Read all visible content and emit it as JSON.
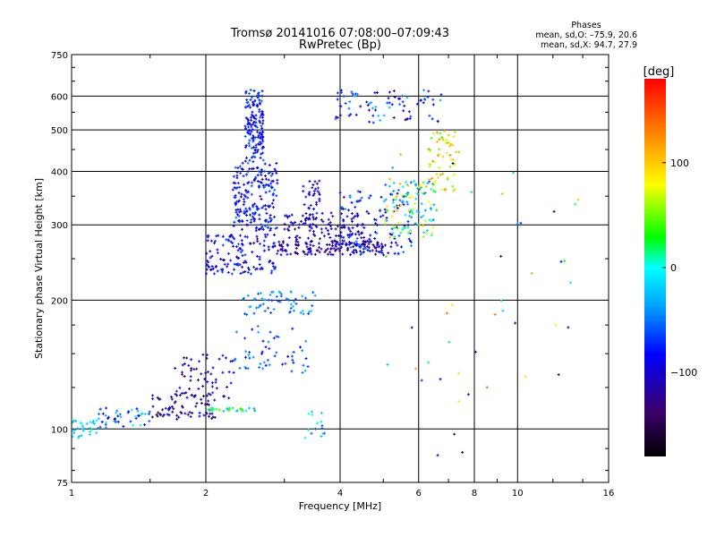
{
  "chart_data": {
    "type": "scatter",
    "title": "Tromsø 20141016 07:08:00–07:09:43",
    "subtitle": "RwPretec (Bp)",
    "xlabel": "Frequency [MHz]",
    "ylabel": "Stationary phase Virtual Height [km]",
    "x_scale": "log",
    "y_scale": "log",
    "xlim": [
      1,
      16
    ],
    "ylim": [
      75,
      750
    ],
    "x_ticks": [
      1,
      2,
      4,
      6,
      8,
      10,
      16
    ],
    "y_ticks": [
      75,
      100,
      200,
      300,
      400,
      500,
      600,
      750
    ],
    "grid": true,
    "stats": {
      "heading": "Phases",
      "line1": "mean, sd,O: –75.9, 20.6",
      "line2": "mean, sd,X:  94.7, 27.9"
    },
    "colorbar": {
      "label": "[deg]",
      "range": [
        -180,
        180
      ],
      "ticks": [
        {
          "value": 100,
          "label": "100"
        },
        {
          "value": 0,
          "label": "0"
        },
        {
          "value": -100,
          "label": "−100"
        }
      ]
    },
    "clusters": [
      {
        "f": [
          1.0,
          1.15
        ],
        "h": [
          95,
          105
        ],
        "n": 30,
        "phase": [
          -40,
          20
        ]
      },
      {
        "f": [
          1.15,
          1.5
        ],
        "h": [
          100,
          112
        ],
        "n": 45,
        "phase": [
          -110,
          10
        ]
      },
      {
        "f": [
          1.5,
          2.1
        ],
        "h": [
          105,
          120
        ],
        "n": 70,
        "phase": [
          -160,
          -80
        ]
      },
      {
        "f": [
          1.7,
          2.3
        ],
        "h": [
          118,
          150
        ],
        "n": 60,
        "phase": [
          -150,
          -70
        ]
      },
      {
        "f": [
          2.0,
          2.6
        ],
        "h": [
          110,
          112
        ],
        "n": 30,
        "phase": [
          -40,
          60
        ]
      },
      {
        "f": [
          2.3,
          3.4
        ],
        "h": [
          135,
          175
        ],
        "n": 55,
        "phase": [
          -100,
          -30
        ]
      },
      {
        "f": [
          2.4,
          3.6
        ],
        "h": [
          185,
          210
        ],
        "n": 60,
        "phase": [
          -70,
          -20
        ]
      },
      {
        "f": [
          2.0,
          2.9
        ],
        "h": [
          230,
          285
        ],
        "n": 140,
        "phase": [
          -120,
          -60
        ]
      },
      {
        "f": [
          2.3,
          2.9
        ],
        "h": [
          290,
          420
        ],
        "n": 200,
        "phase": [
          -110,
          -50
        ]
      },
      {
        "f": [
          2.45,
          2.7
        ],
        "h": [
          420,
          620
        ],
        "n": 150,
        "phase": [
          -110,
          -50
        ]
      },
      {
        "f": [
          2.9,
          5.0
        ],
        "h": [
          255,
          275
        ],
        "n": 150,
        "phase": [
          -150,
          -80
        ]
      },
      {
        "f": [
          3.0,
          4.5
        ],
        "h": [
          275,
          320
        ],
        "n": 100,
        "phase": [
          -140,
          -80
        ]
      },
      {
        "f": [
          3.3,
          3.6
        ],
        "h": [
          300,
          380
        ],
        "n": 40,
        "phase": [
          -120,
          -70
        ]
      },
      {
        "f": [
          4.0,
          5.8
        ],
        "h": [
          255,
          360
        ],
        "n": 120,
        "phase": [
          -120,
          -40
        ]
      },
      {
        "f": [
          5.0,
          6.6
        ],
        "h": [
          280,
          380
        ],
        "n": 110,
        "phase": [
          -60,
          110
        ]
      },
      {
        "f": [
          6.3,
          7.4
        ],
        "h": [
          360,
          500
        ],
        "n": 60,
        "phase": [
          40,
          130
        ]
      },
      {
        "f": [
          3.9,
          6.8
        ],
        "h": [
          520,
          620
        ],
        "n": 80,
        "phase": [
          -130,
          -20
        ]
      },
      {
        "f": [
          3.3,
          3.7
        ],
        "h": [
          95,
          110
        ],
        "n": 15,
        "phase": [
          -60,
          10
        ]
      },
      {
        "f": [
          5.0,
          14.0
        ],
        "h": [
          80,
          450
        ],
        "n": 45,
        "phase": [
          -150,
          140
        ]
      }
    ]
  }
}
